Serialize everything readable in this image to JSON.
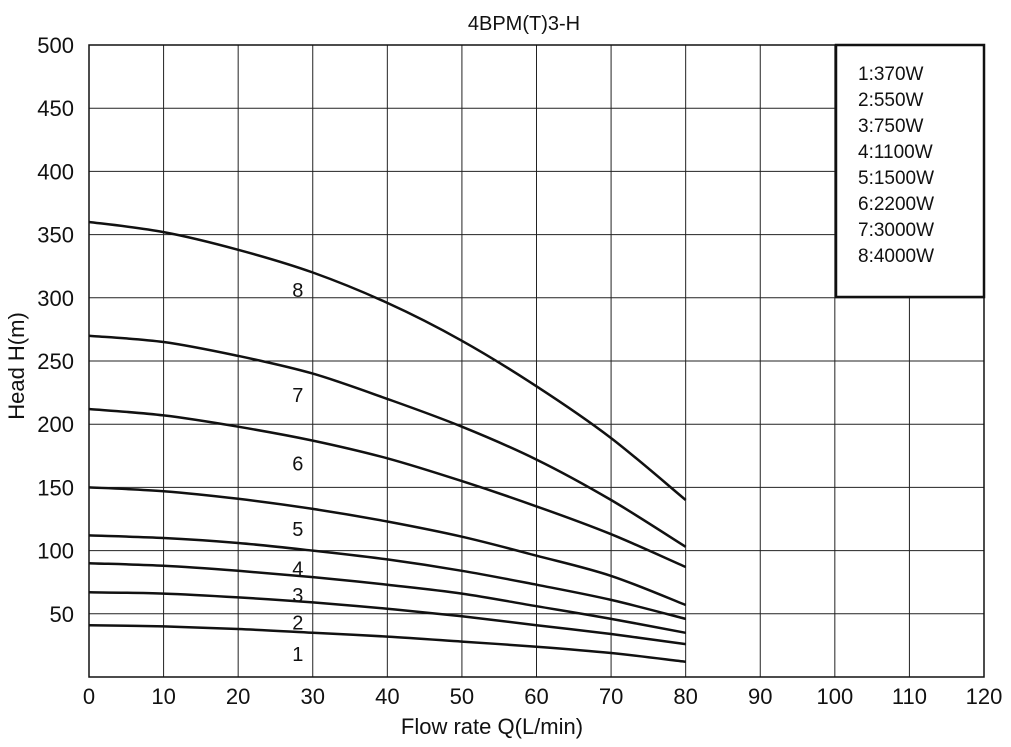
{
  "chart_data": {
    "type": "line",
    "title": "4BPM(T)3-H",
    "xlabel": "Flow rate Q(L/min)",
    "ylabel": "Head H(m)",
    "xlim": [
      0,
      120
    ],
    "ylim": [
      0,
      500
    ],
    "x_ticks": [
      0,
      10,
      20,
      30,
      40,
      50,
      60,
      70,
      80,
      90,
      100,
      110,
      120
    ],
    "y_ticks": [
      50,
      100,
      150,
      200,
      250,
      300,
      350,
      400,
      450,
      500
    ],
    "grid": true,
    "legend_position": "top-right",
    "legend": [
      "1:370W",
      "2:550W",
      "3:750W",
      "4:1100W",
      "5:1500W",
      "6:2200W",
      "7:3000W",
      "8:4000W"
    ],
    "series": [
      {
        "name": "1",
        "x": [
          0,
          10,
          20,
          30,
          40,
          50,
          60,
          70,
          80
        ],
        "values": [
          41,
          40,
          38,
          35,
          32,
          28,
          24,
          19,
          12
        ]
      },
      {
        "name": "2",
        "x": [
          0,
          10,
          20,
          30,
          40,
          50,
          60,
          70,
          80
        ],
        "values": [
          67,
          66,
          63,
          59,
          54,
          48,
          41,
          34,
          26
        ]
      },
      {
        "name": "3",
        "x": [
          0,
          10,
          20,
          30,
          40,
          50,
          60,
          70,
          80
        ],
        "values": [
          90,
          88,
          84,
          79,
          73,
          66,
          56,
          46,
          35
        ]
      },
      {
        "name": "4",
        "x": [
          0,
          10,
          20,
          30,
          40,
          50,
          60,
          70,
          80
        ],
        "values": [
          112,
          110,
          106,
          100,
          93,
          84,
          73,
          61,
          46
        ]
      },
      {
        "name": "5",
        "x": [
          0,
          10,
          20,
          30,
          40,
          50,
          60,
          70,
          80
        ],
        "values": [
          150,
          147,
          141,
          133,
          123,
          111,
          96,
          80,
          57
        ]
      },
      {
        "name": "6",
        "x": [
          0,
          10,
          20,
          30,
          40,
          50,
          60,
          70,
          80
        ],
        "values": [
          212,
          207,
          198,
          187,
          173,
          155,
          135,
          113,
          87
        ]
      },
      {
        "name": "7",
        "x": [
          0,
          10,
          20,
          30,
          40,
          50,
          60,
          70,
          80
        ],
        "values": [
          270,
          265,
          254,
          240,
          220,
          198,
          172,
          140,
          103
        ]
      },
      {
        "name": "8",
        "x": [
          0,
          10,
          20,
          30,
          40,
          50,
          60,
          70,
          80
        ],
        "values": [
          360,
          352,
          338,
          320,
          296,
          266,
          230,
          189,
          140
        ]
      }
    ],
    "curve_labels": [
      {
        "text": "1",
        "x": 28,
        "y": 18
      },
      {
        "text": "2",
        "x": 28,
        "y": 43
      },
      {
        "text": "3",
        "x": 28,
        "y": 65
      },
      {
        "text": "4",
        "x": 28,
        "y": 86
      },
      {
        "text": "5",
        "x": 28,
        "y": 117
      },
      {
        "text": "6",
        "x": 28,
        "y": 169
      },
      {
        "text": "7",
        "x": 28,
        "y": 223
      },
      {
        "text": "8",
        "x": 28,
        "y": 306
      }
    ]
  }
}
